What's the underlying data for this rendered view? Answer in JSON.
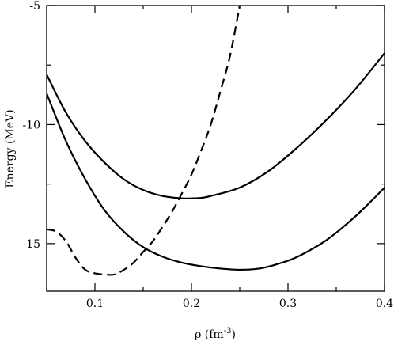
{
  "chart_data": {
    "type": "line",
    "xlabel_base": "ρ (fm",
    "xlabel_sup": "-3",
    "xlabel_end": ")",
    "ylabel": "Energy (MeV)",
    "xlim": [
      0.05,
      0.4
    ],
    "ylim": [
      -17,
      -5
    ],
    "xticks": [
      0.1,
      0.2,
      0.3,
      0.4
    ],
    "xtick_labels": [
      "0.1",
      "0.2",
      "0.3",
      "0.4"
    ],
    "yticks": [
      -15,
      -10,
      -5
    ],
    "ytick_labels": [
      "-15",
      "-10",
      "-5"
    ],
    "grid": false,
    "legend": "none",
    "series": [
      {
        "style": "solid",
        "x": [
          0.05,
          0.07,
          0.09,
          0.11,
          0.13,
          0.15,
          0.17,
          0.19,
          0.2,
          0.21,
          0.22,
          0.25,
          0.28,
          0.31,
          0.34,
          0.37,
          0.4
        ],
        "y": [
          -7.9,
          -9.5,
          -10.7,
          -11.6,
          -12.3,
          -12.75,
          -13.0,
          -13.1,
          -13.1,
          -13.08,
          -13.0,
          -12.65,
          -11.95,
          -10.95,
          -9.8,
          -8.5,
          -7.0
        ]
      },
      {
        "style": "solid",
        "x": [
          0.05,
          0.07,
          0.09,
          0.11,
          0.13,
          0.15,
          0.17,
          0.19,
          0.21,
          0.23,
          0.25,
          0.27,
          0.29,
          0.31,
          0.34,
          0.37,
          0.4
        ],
        "y": [
          -8.7,
          -10.7,
          -12.3,
          -13.6,
          -14.5,
          -15.15,
          -15.55,
          -15.8,
          -15.95,
          -16.05,
          -16.1,
          -16.05,
          -15.85,
          -15.55,
          -14.85,
          -13.85,
          -12.65
        ]
      },
      {
        "style": "dashed",
        "x": [
          0.05,
          0.06,
          0.07,
          0.08,
          0.09,
          0.1,
          0.11,
          0.12,
          0.13,
          0.14,
          0.15,
          0.16,
          0.17,
          0.18,
          0.19,
          0.2,
          0.21,
          0.22,
          0.23,
          0.24,
          0.25
        ],
        "y": [
          -14.4,
          -14.5,
          -14.9,
          -15.6,
          -16.1,
          -16.25,
          -16.3,
          -16.3,
          -16.1,
          -15.8,
          -15.35,
          -14.9,
          -14.3,
          -13.65,
          -12.9,
          -12.1,
          -11.1,
          -10.0,
          -8.6,
          -7.1,
          -5.0
        ]
      }
    ]
  }
}
